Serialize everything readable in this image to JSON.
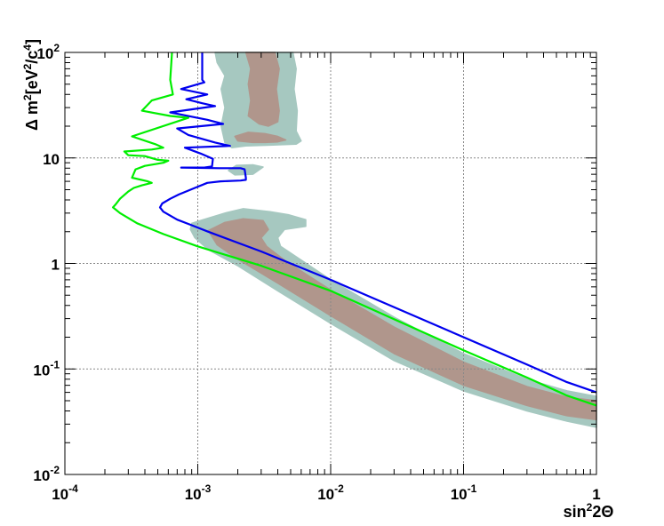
{
  "chart_data": {
    "type": "line",
    "title": "",
    "xlabel": "sin²2Θ",
    "ylabel": "Δ m²[eV²/c⁴]",
    "xscale": "log",
    "yscale": "log",
    "xlim": [
      0.0001,
      1
    ],
    "ylim": [
      0.01,
      100
    ],
    "grid": true,
    "legend": "none",
    "x_ticks": [
      {
        "value": 0.0001,
        "base": "10",
        "exp": "-4"
      },
      {
        "value": 0.001,
        "base": "10",
        "exp": "-3"
      },
      {
        "value": 0.01,
        "base": "10",
        "exp": "-2"
      },
      {
        "value": 0.1,
        "base": "10",
        "exp": "-1"
      },
      {
        "value": 1,
        "base": "1",
        "exp": ""
      }
    ],
    "y_ticks": [
      {
        "value": 0.01,
        "base": "10",
        "exp": "-2"
      },
      {
        "value": 0.1,
        "base": "10",
        "exp": "-1"
      },
      {
        "value": 1,
        "base": "1",
        "exp": ""
      },
      {
        "value": 10,
        "base": "10",
        "exp": ""
      },
      {
        "value": 100,
        "base": "10",
        "exp": "2"
      }
    ],
    "regions": [
      {
        "color": "#a6c8c0",
        "polygons": [
          [
            [
              0.00135,
              100
            ],
            [
              0.0018,
              100
            ],
            [
              0.0022,
              100
            ],
            [
              0.0026,
              100
            ],
            [
              0.0033,
              100
            ],
            [
              0.0045,
              100
            ],
            [
              0.0052,
              100
            ],
            [
              0.0055,
              70
            ],
            [
              0.0053,
              45
            ],
            [
              0.0056,
              28
            ],
            [
              0.0055,
              18
            ],
            [
              0.006,
              14.5
            ],
            [
              0.0055,
              13.5
            ],
            [
              0.0035,
              13.2
            ],
            [
              0.0023,
              13
            ],
            [
              0.0018,
              12.5
            ],
            [
              0.0016,
              14
            ],
            [
              0.0015,
              20
            ],
            [
              0.0016,
              30
            ],
            [
              0.0015,
              45
            ],
            [
              0.0016,
              60
            ],
            [
              0.0014,
              80
            ]
          ],
          [
            [
              0.00195,
              8.5
            ],
            [
              0.0026,
              8.6
            ],
            [
              0.0031,
              8.2
            ],
            [
              0.0026,
              7.0
            ],
            [
              0.0019,
              6.9
            ],
            [
              0.0017,
              7.6
            ]
          ],
          [
            [
              0.0009,
              2.4
            ],
            [
              0.0011,
              2.6
            ],
            [
              0.0016,
              3.0
            ],
            [
              0.0022,
              3.3
            ],
            [
              0.0035,
              3.1
            ],
            [
              0.0048,
              2.9
            ],
            [
              0.0065,
              2.6
            ],
            [
              0.0065,
              2.25
            ],
            [
              0.0045,
              2.1
            ],
            [
              0.004,
              1.75
            ],
            [
              0.0042,
              1.45
            ],
            [
              0.01,
              0.7
            ],
            [
              0.03,
              0.31
            ],
            [
              0.1,
              0.14
            ],
            [
              0.3,
              0.08
            ],
            [
              0.6,
              0.062
            ],
            [
              1,
              0.055
            ],
            [
              1,
              0.028
            ],
            [
              0.6,
              0.032
            ],
            [
              0.3,
              0.04
            ],
            [
              0.1,
              0.062
            ],
            [
              0.03,
              0.12
            ],
            [
              0.01,
              0.27
            ],
            [
              0.004,
              0.55
            ],
            [
              0.002,
              0.95
            ],
            [
              0.0012,
              1.35
            ],
            [
              0.00095,
              1.75
            ],
            [
              0.00088,
              2.1
            ]
          ]
        ]
      },
      {
        "color": "#b0968c",
        "polygons": [
          [
            [
              0.0023,
              100
            ],
            [
              0.0028,
              100
            ],
            [
              0.0034,
              100
            ],
            [
              0.0038,
              100
            ],
            [
              0.0041,
              70
            ],
            [
              0.0039,
              45
            ],
            [
              0.0041,
              28
            ],
            [
              0.004,
              22
            ],
            [
              0.0034,
              20
            ],
            [
              0.0029,
              21
            ],
            [
              0.0024,
              25
            ],
            [
              0.0025,
              35
            ],
            [
              0.0024,
              50
            ],
            [
              0.0025,
              70
            ]
          ],
          [
            [
              0.0019,
              16
            ],
            [
              0.0024,
              17.5
            ],
            [
              0.0032,
              17
            ],
            [
              0.004,
              16
            ],
            [
              0.0046,
              14.8
            ],
            [
              0.004,
              14.2
            ],
            [
              0.0032,
              14.0
            ],
            [
              0.0026,
              14.0
            ],
            [
              0.002,
              14.5
            ]
          ],
          [
            [
              0.0012,
              2.05
            ],
            [
              0.0016,
              2.45
            ],
            [
              0.0022,
              2.65
            ],
            [
              0.0031,
              2.55
            ],
            [
              0.0034,
              2.1
            ],
            [
              0.003,
              1.75
            ],
            [
              0.0033,
              1.45
            ],
            [
              0.0046,
              1.05
            ],
            [
              0.01,
              0.56
            ],
            [
              0.03,
              0.25
            ],
            [
              0.1,
              0.116
            ],
            [
              0.3,
              0.068
            ],
            [
              0.6,
              0.054
            ],
            [
              1,
              0.05
            ],
            [
              1,
              0.033
            ],
            [
              0.6,
              0.036
            ],
            [
              0.3,
              0.045
            ],
            [
              0.1,
              0.07
            ],
            [
              0.03,
              0.14
            ],
            [
              0.01,
              0.32
            ],
            [
              0.004,
              0.65
            ],
            [
              0.002,
              1.1
            ],
            [
              0.0014,
              1.5
            ]
          ]
        ]
      }
    ],
    "series": [
      {
        "color": "#0000ee",
        "points": [
          [
            0.00108,
            100
          ],
          [
            0.00108,
            55
          ],
          [
            0.00112,
            52
          ],
          [
            0.00075,
            45
          ],
          [
            0.00118,
            40
          ],
          [
            0.00082,
            36
          ],
          [
            0.00108,
            33
          ],
          [
            0.00135,
            31
          ],
          [
            0.00062,
            27
          ],
          [
            0.00118,
            23
          ],
          [
            0.00155,
            21
          ],
          [
            0.0007,
            19
          ],
          [
            0.00085,
            16.5
          ],
          [
            0.00135,
            14
          ],
          [
            0.00175,
            13
          ],
          [
            0.0008,
            12.5
          ],
          [
            0.00105,
            11
          ],
          [
            0.0013,
            9.8
          ],
          [
            0.00128,
            8.3
          ],
          [
            0.00112,
            8.1
          ],
          [
            0.00075,
            8.1
          ],
          [
            0.00145,
            8.0
          ],
          [
            0.0021,
            8.0
          ],
          [
            0.00225,
            7.8
          ],
          [
            0.0023,
            6.5
          ],
          [
            0.0023,
            6.2
          ],
          [
            0.0021,
            6.1
          ],
          [
            0.00148,
            6.0
          ],
          [
            0.00118,
            5.8
          ],
          [
            0.00095,
            5.2
          ],
          [
            0.00072,
            4.5
          ],
          [
            0.00062,
            4.1
          ],
          [
            0.00054,
            3.7
          ],
          [
            0.00052,
            3.4
          ],
          [
            0.00055,
            3.1
          ],
          [
            0.0007,
            2.6
          ],
          [
            0.0009,
            2.3
          ],
          [
            0.0012,
            2.0
          ],
          [
            0.003,
            1.3
          ],
          [
            0.01,
            0.7
          ],
          [
            0.1,
            0.2
          ],
          [
            0.3,
            0.11
          ],
          [
            0.6,
            0.075
          ],
          [
            1,
            0.06
          ]
        ]
      },
      {
        "color": "#00ee00",
        "points": [
          [
            0.00064,
            100
          ],
          [
            0.00062,
            55
          ],
          [
            0.00065,
            40
          ],
          [
            0.00045,
            35
          ],
          [
            0.00038,
            28
          ],
          [
            0.00062,
            25
          ],
          [
            0.00085,
            24
          ],
          [
            0.00032,
            16
          ],
          [
            0.00048,
            13.5
          ],
          [
            0.00055,
            12.5
          ],
          [
            0.00045,
            12
          ],
          [
            0.00028,
            11.5
          ],
          [
            0.0003,
            10.6
          ],
          [
            0.0004,
            10.4
          ],
          [
            0.0005,
            9.6
          ],
          [
            0.0006,
            9.4
          ],
          [
            0.00055,
            9
          ],
          [
            0.0004,
            8.4
          ],
          [
            0.00034,
            7.8
          ],
          [
            0.00032,
            6.5
          ],
          [
            0.00042,
            6.0
          ],
          [
            0.00045,
            5.8
          ],
          [
            0.00038,
            5.5
          ],
          [
            0.00033,
            5.2
          ],
          [
            0.0003,
            4.8
          ],
          [
            0.00026,
            4.1
          ],
          [
            0.00024,
            3.6
          ],
          [
            0.00023,
            3.4
          ],
          [
            0.00026,
            3.0
          ],
          [
            0.00035,
            2.4
          ],
          [
            0.00055,
            1.9
          ],
          [
            0.001,
            1.45
          ],
          [
            0.003,
            0.95
          ],
          [
            0.01,
            0.55
          ],
          [
            0.1,
            0.15
          ],
          [
            0.3,
            0.083
          ],
          [
            0.6,
            0.056
          ],
          [
            1,
            0.045
          ]
        ]
      }
    ]
  }
}
